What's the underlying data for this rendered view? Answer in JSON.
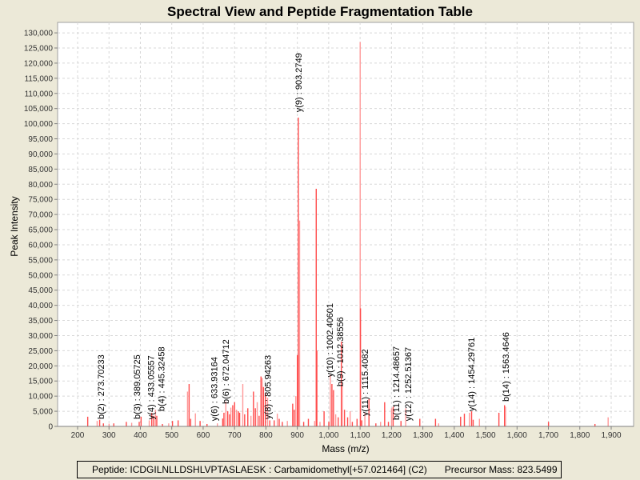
{
  "chart_data": {
    "type": "bar",
    "title": "Spectral View and Peptide Fragmentation Table",
    "xlabel": "Mass (m/z)",
    "ylabel": "Peak Intensity",
    "xlim": [
      150,
      1970
    ],
    "ylim": [
      0,
      134000
    ],
    "xticks": [
      200,
      300,
      400,
      500,
      600,
      700,
      800,
      900,
      1000,
      1100,
      1200,
      1300,
      1400,
      1500,
      1600,
      1700,
      1800,
      1900
    ],
    "xtick_labels": [
      "200",
      "300",
      "400",
      "500",
      "600",
      "700",
      "800",
      "900",
      "1,000",
      "1,100",
      "1,200",
      "1,300",
      "1,400",
      "1,500",
      "1,600",
      "1,700",
      "1,800",
      "1,900"
    ],
    "yticks": [
      0,
      5000,
      10000,
      15000,
      20000,
      25000,
      30000,
      35000,
      40000,
      45000,
      50000,
      55000,
      60000,
      65000,
      70000,
      75000,
      80000,
      85000,
      90000,
      95000,
      100000,
      105000,
      110000,
      115000,
      120000,
      125000,
      130000
    ],
    "ytick_labels": [
      "0",
      "5,000",
      "10,000",
      "15,000",
      "20,000",
      "25,000",
      "30,000",
      "35,000",
      "40,000",
      "45,000",
      "50,000",
      "55,000",
      "60,000",
      "65,000",
      "70,000",
      "75,000",
      "80,000",
      "85,000",
      "90,000",
      "95,000",
      "100,000",
      "105,000",
      "110,000",
      "115,000",
      "120,000",
      "125,000",
      "130,000"
    ],
    "grid": true,
    "peak_color": "#ff4c4c",
    "peak_color_light": "#ff9999",
    "peaks": [
      [
        232,
        3200
      ],
      [
        262,
        1800
      ],
      [
        270,
        2200
      ],
      [
        282,
        1000
      ],
      [
        300,
        900
      ],
      [
        315,
        1000
      ],
      [
        355,
        1500
      ],
      [
        372,
        1200
      ],
      [
        396,
        1500
      ],
      [
        402,
        3200
      ],
      [
        428,
        2000
      ],
      [
        436,
        4500
      ],
      [
        442,
        3500
      ],
      [
        448,
        5500
      ],
      [
        452,
        3500
      ],
      [
        470,
        800
      ],
      [
        490,
        1000
      ],
      [
        502,
        1800
      ],
      [
        520,
        2000
      ],
      [
        550,
        11500
      ],
      [
        555,
        14000
      ],
      [
        560,
        2500
      ],
      [
        575,
        4300
      ],
      [
        590,
        1800
      ],
      [
        612,
        800
      ],
      [
        645,
        1000
      ],
      [
        662,
        2600
      ],
      [
        666,
        4500
      ],
      [
        672,
        8200
      ],
      [
        678,
        5000
      ],
      [
        684,
        4000
      ],
      [
        688,
        6200
      ],
      [
        694,
        7000
      ],
      [
        700,
        8000
      ],
      [
        706,
        5500
      ],
      [
        712,
        5000
      ],
      [
        716,
        4500
      ],
      [
        726,
        14000
      ],
      [
        732,
        4000
      ],
      [
        742,
        6000
      ],
      [
        752,
        3500
      ],
      [
        760,
        11500
      ],
      [
        766,
        6000
      ],
      [
        772,
        8000
      ],
      [
        778,
        3500
      ],
      [
        784,
        16500
      ],
      [
        788,
        16000
      ],
      [
        792,
        13000
      ],
      [
        798,
        11000
      ],
      [
        805,
        9500
      ],
      [
        812,
        2000
      ],
      [
        826,
        2000
      ],
      [
        836,
        4200
      ],
      [
        842,
        2500
      ],
      [
        852,
        1500
      ],
      [
        868,
        1800
      ],
      [
        885,
        7500
      ],
      [
        890,
        5500
      ],
      [
        895,
        10000
      ],
      [
        900,
        23500
      ],
      [
        903,
        102000
      ],
      [
        907,
        68000
      ],
      [
        920,
        1500
      ],
      [
        935,
        2500
      ],
      [
        955,
        1800
      ],
      [
        960,
        78500
      ],
      [
        962,
        25000
      ],
      [
        972,
        1500
      ],
      [
        985,
        5000
      ],
      [
        1000,
        1500
      ],
      [
        1005,
        17000
      ],
      [
        1010,
        14000
      ],
      [
        1015,
        12000
      ],
      [
        1022,
        4000
      ],
      [
        1030,
        3000
      ],
      [
        1040,
        28000
      ],
      [
        1043,
        13500
      ],
      [
        1050,
        5500
      ],
      [
        1060,
        3000
      ],
      [
        1068,
        5000
      ],
      [
        1075,
        1500
      ],
      [
        1090,
        2500
      ],
      [
        1100,
        127000
      ],
      [
        1101,
        39000
      ],
      [
        1105,
        2000
      ],
      [
        1115,
        4500
      ],
      [
        1128,
        9000
      ],
      [
        1150,
        1000
      ],
      [
        1165,
        1500
      ],
      [
        1178,
        8000
      ],
      [
        1190,
        1500
      ],
      [
        1200,
        6000
      ],
      [
        1205,
        6500
      ],
      [
        1230,
        1800
      ],
      [
        1245,
        6000
      ],
      [
        1290,
        2500
      ],
      [
        1340,
        2500
      ],
      [
        1350,
        1000
      ],
      [
        1420,
        3200
      ],
      [
        1432,
        4200
      ],
      [
        1448,
        4500
      ],
      [
        1455,
        5000
      ],
      [
        1460,
        2200
      ],
      [
        1480,
        2500
      ],
      [
        1542,
        4500
      ],
      [
        1560,
        7000
      ],
      [
        1563,
        6500
      ],
      [
        1700,
        1500
      ],
      [
        1848,
        800
      ],
      [
        1890,
        3000
      ]
    ],
    "annotations": [
      {
        "label": "b(2) : 273.70233",
        "mz": 273.70233,
        "intensity": 1600
      },
      {
        "label": "b(3) : 389.05725",
        "mz": 389.05725,
        "intensity": 1600
      },
      {
        "label": "y(4) : 433.05557",
        "mz": 433.05557,
        "intensity": 1500
      },
      {
        "label": "b(4) : 445.32458",
        "mz": 445.32458,
        "intensity": 4200
      },
      {
        "label": "y(6) : 633.93164",
        "mz": 633.93164,
        "intensity": 1000
      },
      {
        "label": "b(6) : 672.04712",
        "mz": 672.04712,
        "intensity": 6600
      },
      {
        "label": "y(8) : 805.94263",
        "mz": 805.94263,
        "intensity": 1600
      },
      {
        "label": "y(9) : 903.2749",
        "mz": 903.2749,
        "intensity": 103000
      },
      {
        "label": "y(10) : 1002.40601",
        "mz": 1002.40601,
        "intensity": 15500
      },
      {
        "label": "b(9) : 1012.38556",
        "mz": 1012.38556,
        "intensity": 12400
      },
      {
        "label": "y(11) : 1115.4082",
        "mz": 1115.4082,
        "intensity": 2600
      },
      {
        "label": "b(11) : 1214.48657",
        "mz": 1214.48657,
        "intensity": 1300
      },
      {
        "label": "y(12) : 1252.51367",
        "mz": 1252.51367,
        "intensity": 1000
      },
      {
        "label": "y(14) : 1454.29761",
        "mz": 1454.29761,
        "intensity": 4200
      },
      {
        "label": "b(14) : 1563.4646",
        "mz": 1563.4646,
        "intensity": 7400
      }
    ]
  },
  "footer": {
    "peptide": "Peptide: ICDGILNLLDSHLVPTASLAESK : Carbamidomethyl[+57.021464] (C2)",
    "precursor": "Precursor Mass: 823.5499"
  }
}
